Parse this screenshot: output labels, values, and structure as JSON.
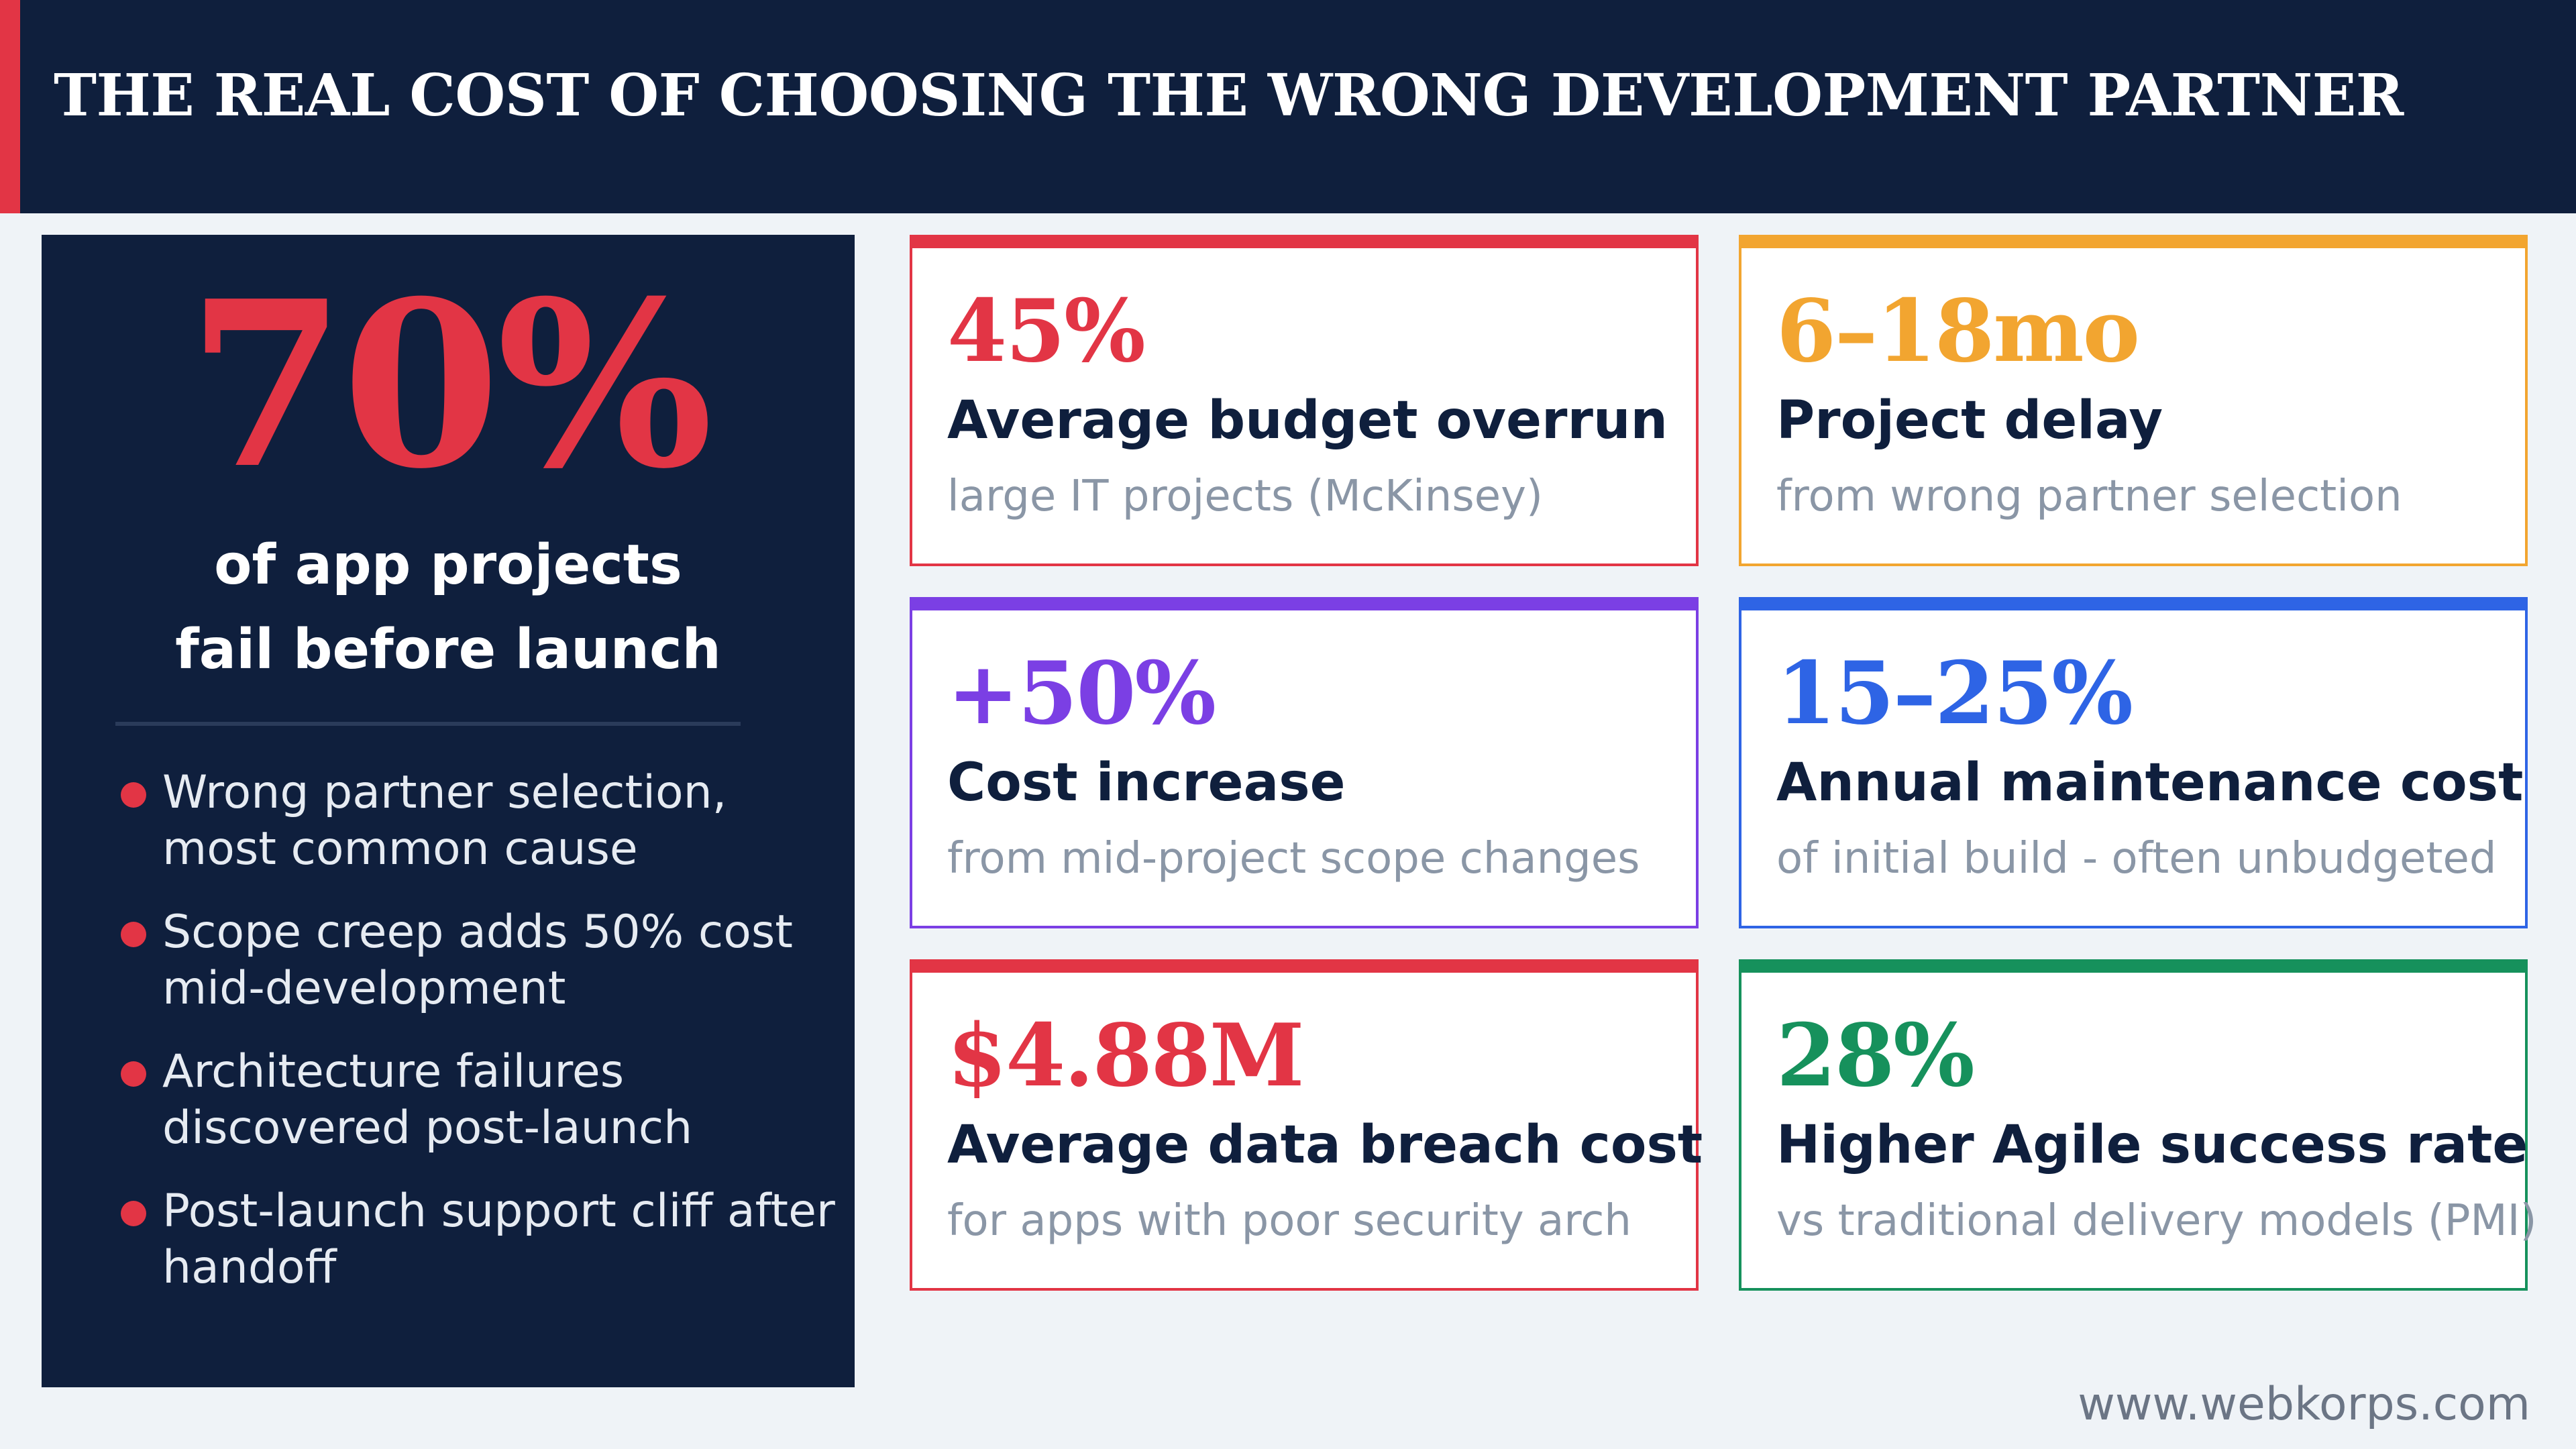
{
  "header": {
    "title": "THE REAL COST OF CHOOSING THE WRONG DEVELOPMENT PARTNER"
  },
  "hero": {
    "stat": "70%",
    "caption_line1": "of app projects",
    "caption_line2": "fail before launch",
    "bullets": [
      "Wrong partner selection, most common cause",
      "Scope creep adds 50% cost mid-development",
      "Architecture failures discovered post-launch",
      "Post-launch support cliff after handoff"
    ]
  },
  "cards": [
    {
      "value": "45%",
      "title": "Average budget overrun",
      "subtitle": "large IT projects (McKinsey)",
      "color": "#e23545"
    },
    {
      "value": "6–18mo",
      "title": "Project delay",
      "subtitle": "from wrong partner selection",
      "color": "#f2a530"
    },
    {
      "value": "+50%",
      "title": "Cost increase",
      "subtitle": "from mid-project scope changes",
      "color": "#7b3fe4"
    },
    {
      "value": "15–25%",
      "title": "Annual maintenance cost",
      "subtitle": "of initial build - often unbudgeted",
      "color": "#2e64e5"
    },
    {
      "value": "$4.88M",
      "title": "Average data breach cost",
      "subtitle": "for apps with poor security arch",
      "color": "#e23545"
    },
    {
      "value": "28%",
      "title": "Higher Agile success rate",
      "subtitle": "vs traditional delivery models (PMI)",
      "color": "#16915c"
    }
  ],
  "footer": {
    "url": "www.webkorps.com"
  }
}
